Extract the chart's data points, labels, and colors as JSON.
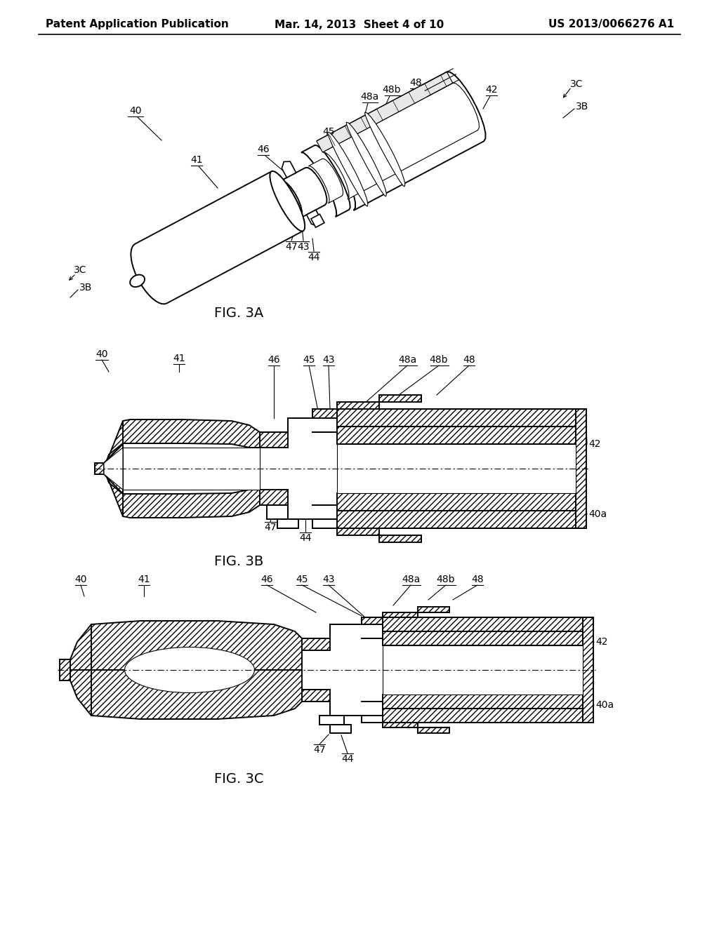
{
  "background_color": "#ffffff",
  "header_left": "Patent Application Publication",
  "header_mid": "Mar. 14, 2013  Sheet 4 of 10",
  "header_right": "US 2013/0066276 A1",
  "line_color": "#000000",
  "text_color": "#000000",
  "font_size_header": 11,
  "font_size_label": 14,
  "font_size_ref": 10,
  "fig3a_label": "FIG. 3A",
  "fig3b_label": "FIG. 3B",
  "fig3c_label": "FIG. 3C"
}
